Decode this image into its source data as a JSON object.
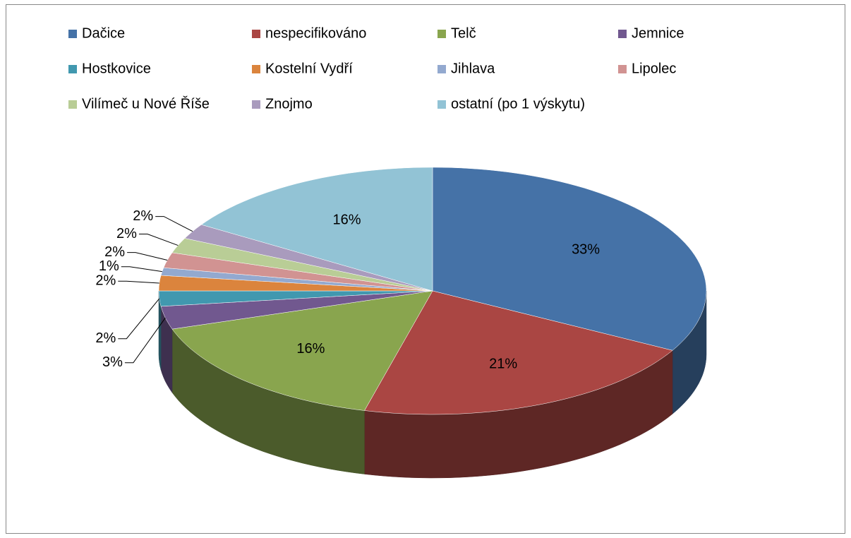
{
  "chart_data": {
    "type": "pie",
    "categories": [
      "Dačice",
      "nespecifikováno",
      "Telč",
      "Jemnice",
      "Hostkovice",
      "Kostelní Vydří",
      "Jihlava",
      "Lipolec",
      "Vilímeč u Nové Říše",
      "Znojmo",
      "ostatní (po 1 výskytu)"
    ],
    "values": [
      33,
      21,
      16,
      3,
      2,
      2,
      1,
      2,
      2,
      2,
      16
    ],
    "value_labels": [
      "33%",
      "21%",
      "16%",
      "3%",
      "2%",
      "2%",
      "1%",
      "2%",
      "2%",
      "2%",
      "16%"
    ],
    "colors": [
      "#4572a7",
      "#aa4643",
      "#89a54e",
      "#71588f",
      "#4198af",
      "#db843d",
      "#93a9cf",
      "#d19392",
      "#b9cd96",
      "#a99bbd",
      "#92c3d5"
    ],
    "legend": "top"
  }
}
